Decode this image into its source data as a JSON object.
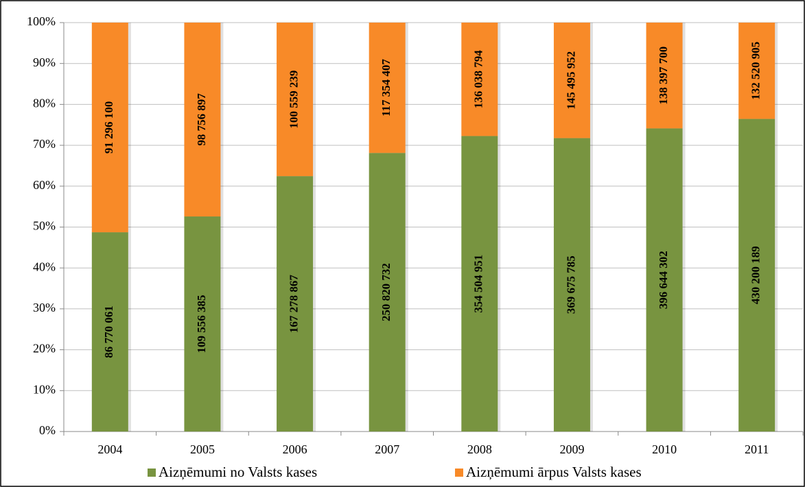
{
  "chart_data": {
    "type": "bar",
    "stacking": "percent",
    "categories": [
      "2004",
      "2005",
      "2006",
      "2007",
      "2008",
      "2009",
      "2010",
      "2011"
    ],
    "series": [
      {
        "name": "Aizņēmumi no Valsts kases",
        "color": "#789440",
        "values": [
          86770061,
          109556385,
          167278867,
          250820732,
          354504951,
          369675785,
          396644302,
          430200189
        ],
        "value_labels": [
          "86 770 061",
          "109 556 385",
          "167 278 867",
          "250 820 732",
          "354 504 951",
          "369 675 785",
          "396 644 302",
          "430 200 189"
        ]
      },
      {
        "name": "Aizņēmumi ārpus Valsts kases",
        "color": "#f88a28",
        "values": [
          91296100,
          98756897,
          100559239,
          117354407,
          136038794,
          145495952,
          138397700,
          132520905
        ],
        "value_labels": [
          "91 296 100",
          "98 756 897",
          "100 559 239",
          "117 354 407",
          "136 038 794",
          "145 495 952",
          "138 397 700",
          "132 520 905"
        ]
      }
    ],
    "ylim": [
      0,
      100
    ],
    "yticks": [
      {
        "value": 0,
        "label": "0%"
      },
      {
        "value": 10,
        "label": "10%"
      },
      {
        "value": 20,
        "label": "20%"
      },
      {
        "value": 30,
        "label": "30%"
      },
      {
        "value": 40,
        "label": "40%"
      },
      {
        "value": 50,
        "label": "50%"
      },
      {
        "value": 60,
        "label": "60%"
      },
      {
        "value": 70,
        "label": "70%"
      },
      {
        "value": 80,
        "label": "80%"
      },
      {
        "value": 90,
        "label": "90%"
      },
      {
        "value": 100,
        "label": "100%"
      }
    ],
    "grid": true,
    "legend": "bottom"
  }
}
